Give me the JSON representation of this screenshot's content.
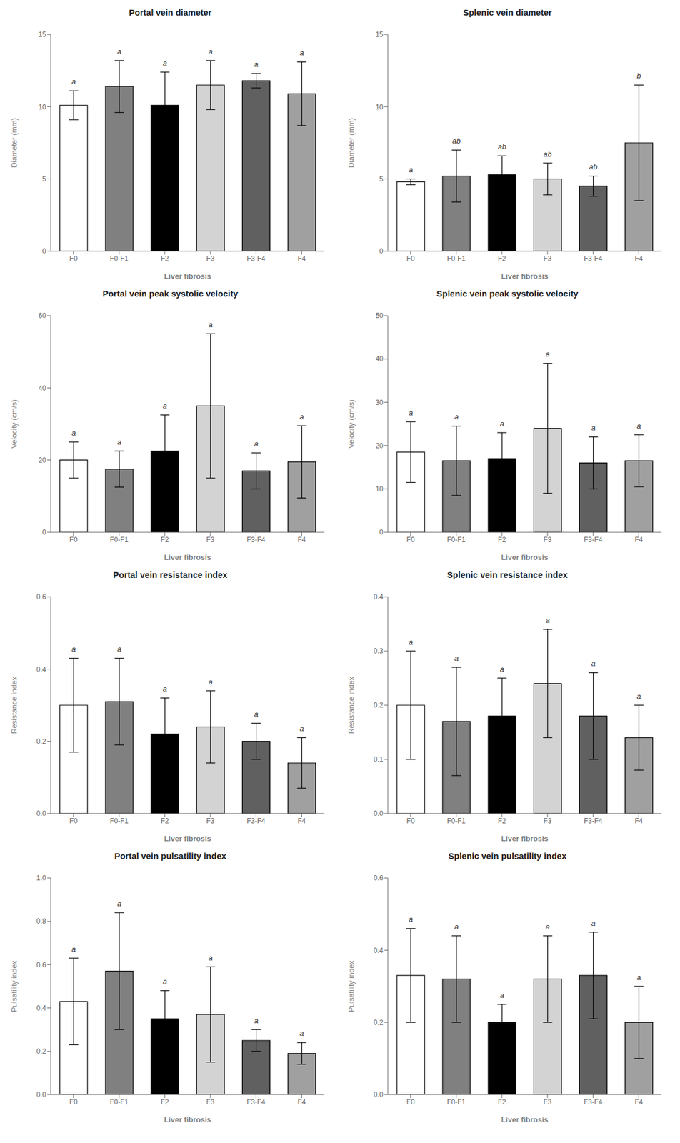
{
  "chart_data": [
    {
      "type": "bar",
      "title": "Portal vein diameter",
      "ylabel": "Diameter (mm)",
      "xlabel": "Liver fibrosis",
      "categories": [
        "F0",
        "F0-F1",
        "F2",
        "F3",
        "F3-F4",
        "F4"
      ],
      "values": [
        10.1,
        11.4,
        10.1,
        11.5,
        11.8,
        10.9
      ],
      "errors": [
        1.0,
        1.8,
        2.3,
        1.7,
        0.5,
        2.2
      ],
      "annotations": [
        "a",
        "a",
        "a",
        "a",
        "a",
        "a"
      ],
      "colors": [
        "#ffffff",
        "#808080",
        "#000000",
        "#d3d3d3",
        "#606060",
        "#a0a0a0"
      ],
      "ylim": [
        0,
        15
      ],
      "yticks": [
        0,
        5,
        10,
        15
      ],
      "grid": false
    },
    {
      "type": "bar",
      "title": "Splenic vein diameter",
      "ylabel": "Diameter (mm)",
      "xlabel": "Liver fibrosis",
      "categories": [
        "F0",
        "F0-F1",
        "F2",
        "F3",
        "F3-F4",
        "F4"
      ],
      "values": [
        4.8,
        5.2,
        5.3,
        5.0,
        4.5,
        7.5
      ],
      "errors": [
        0.2,
        1.8,
        1.3,
        1.1,
        0.7,
        4.0
      ],
      "annotations": [
        "a",
        "ab",
        "ab",
        "ab",
        "ab",
        "b"
      ],
      "colors": [
        "#ffffff",
        "#808080",
        "#000000",
        "#d3d3d3",
        "#606060",
        "#a0a0a0"
      ],
      "ylim": [
        0,
        15
      ],
      "yticks": [
        0,
        5,
        10,
        15
      ],
      "grid": false
    },
    {
      "type": "bar",
      "title": "Portal vein peak systolic velocity",
      "ylabel": "Velocity (cm/s)",
      "xlabel": "Liver fibrosis",
      "categories": [
        "F0",
        "F0-F1",
        "F2",
        "F3",
        "F3-F4",
        "F4"
      ],
      "values": [
        20.0,
        17.5,
        22.5,
        35.0,
        17.0,
        19.5
      ],
      "errors": [
        5.0,
        5.0,
        10.0,
        20.0,
        5.0,
        10.0
      ],
      "annotations": [
        "a",
        "a",
        "a",
        "a",
        "a",
        "a"
      ],
      "colors": [
        "#ffffff",
        "#808080",
        "#000000",
        "#d3d3d3",
        "#606060",
        "#a0a0a0"
      ],
      "ylim": [
        0,
        60
      ],
      "yticks": [
        0,
        20,
        40,
        60
      ],
      "grid": false
    },
    {
      "type": "bar",
      "title": "Splenic vein peak systolic velocity",
      "ylabel": "Velocity (cm/s)",
      "xlabel": "Liver fibrosis",
      "categories": [
        "F0",
        "F0-F1",
        "F2",
        "F3",
        "F3-F4",
        "F4"
      ],
      "values": [
        18.5,
        16.5,
        17.0,
        24.0,
        16.0,
        16.5
      ],
      "errors": [
        7.0,
        8.0,
        6.0,
        15.0,
        6.0,
        6.0
      ],
      "annotations": [
        "a",
        "a",
        "a",
        "a",
        "a",
        "a"
      ],
      "colors": [
        "#ffffff",
        "#808080",
        "#000000",
        "#d3d3d3",
        "#606060",
        "#a0a0a0"
      ],
      "ylim": [
        0,
        50
      ],
      "yticks": [
        0,
        10,
        20,
        30,
        40,
        50
      ],
      "grid": false
    },
    {
      "type": "bar",
      "title": "Portal vein resistance index",
      "ylabel": "Resistance index",
      "xlabel": "Liver fibrosis",
      "categories": [
        "F0",
        "F0-F1",
        "F2",
        "F3",
        "F3-F4",
        "F4"
      ],
      "values": [
        0.3,
        0.31,
        0.22,
        0.24,
        0.2,
        0.14
      ],
      "errors": [
        0.13,
        0.12,
        0.1,
        0.1,
        0.05,
        0.07
      ],
      "annotations": [
        "a",
        "a",
        "a",
        "a",
        "a",
        "a"
      ],
      "colors": [
        "#ffffff",
        "#808080",
        "#000000",
        "#d3d3d3",
        "#606060",
        "#a0a0a0"
      ],
      "ylim": [
        0.0,
        0.6
      ],
      "yticks": [
        {
          "value": 0,
          "label": "0.0"
        },
        0.2,
        0.4,
        0.6
      ],
      "grid": false
    },
    {
      "type": "bar",
      "title": "Splenic vein resistance index",
      "ylabel": "Resistance index",
      "xlabel": "Liver fibrosis",
      "categories": [
        "F0",
        "F0-F1",
        "F2",
        "F3",
        "F3-F4",
        "F4"
      ],
      "values": [
        0.2,
        0.17,
        0.18,
        0.24,
        0.18,
        0.14
      ],
      "errors": [
        0.1,
        0.1,
        0.07,
        0.1,
        0.08,
        0.06
      ],
      "annotations": [
        "a",
        "a",
        "a",
        "a",
        "a",
        "a"
      ],
      "colors": [
        "#ffffff",
        "#808080",
        "#000000",
        "#d3d3d3",
        "#606060",
        "#a0a0a0"
      ],
      "ylim": [
        0.0,
        0.4
      ],
      "yticks": [
        {
          "value": 0,
          "label": "0.0"
        },
        0.1,
        0.2,
        0.3,
        0.4
      ],
      "grid": false
    },
    {
      "type": "bar",
      "title": "Portal vein pulsatility index",
      "ylabel": "Pulsatility index",
      "xlabel": "Liver fibrosis",
      "categories": [
        "F0",
        "F0-F1",
        "F2",
        "F3",
        "F3-F4",
        "F4"
      ],
      "values": [
        0.43,
        0.57,
        0.35,
        0.37,
        0.25,
        0.19
      ],
      "errors": [
        0.2,
        0.27,
        0.13,
        0.22,
        0.05,
        0.05
      ],
      "annotations": [
        "a",
        "a",
        "a",
        "a",
        "a",
        "a"
      ],
      "colors": [
        "#ffffff",
        "#808080",
        "#000000",
        "#d3d3d3",
        "#606060",
        "#a0a0a0"
      ],
      "ylim": [
        0.0,
        1.0
      ],
      "yticks": [
        {
          "value": 0,
          "label": "0.0"
        },
        0.2,
        0.4,
        0.6,
        0.8,
        {
          "value": 1,
          "label": "1.0"
        }
      ],
      "grid": false
    },
    {
      "type": "bar",
      "title": "Splenic vein pulsatility index",
      "ylabel": "Pulsatility index",
      "xlabel": "Liver fibrosis",
      "categories": [
        "F0",
        "F0-F1",
        "F2",
        "F3",
        "F3-F4",
        "F4"
      ],
      "values": [
        0.33,
        0.32,
        0.2,
        0.32,
        0.33,
        0.2
      ],
      "errors": [
        0.13,
        0.12,
        0.05,
        0.12,
        0.12,
        0.1
      ],
      "annotations": [
        "a",
        "a",
        "a",
        "a",
        "a",
        "a"
      ],
      "colors": [
        "#ffffff",
        "#808080",
        "#000000",
        "#d3d3d3",
        "#606060",
        "#a0a0a0"
      ],
      "ylim": [
        0.0,
        0.6
      ],
      "yticks": [
        {
          "value": 0,
          "label": "0.0"
        },
        0.2,
        0.4,
        0.6
      ],
      "grid": false
    }
  ]
}
